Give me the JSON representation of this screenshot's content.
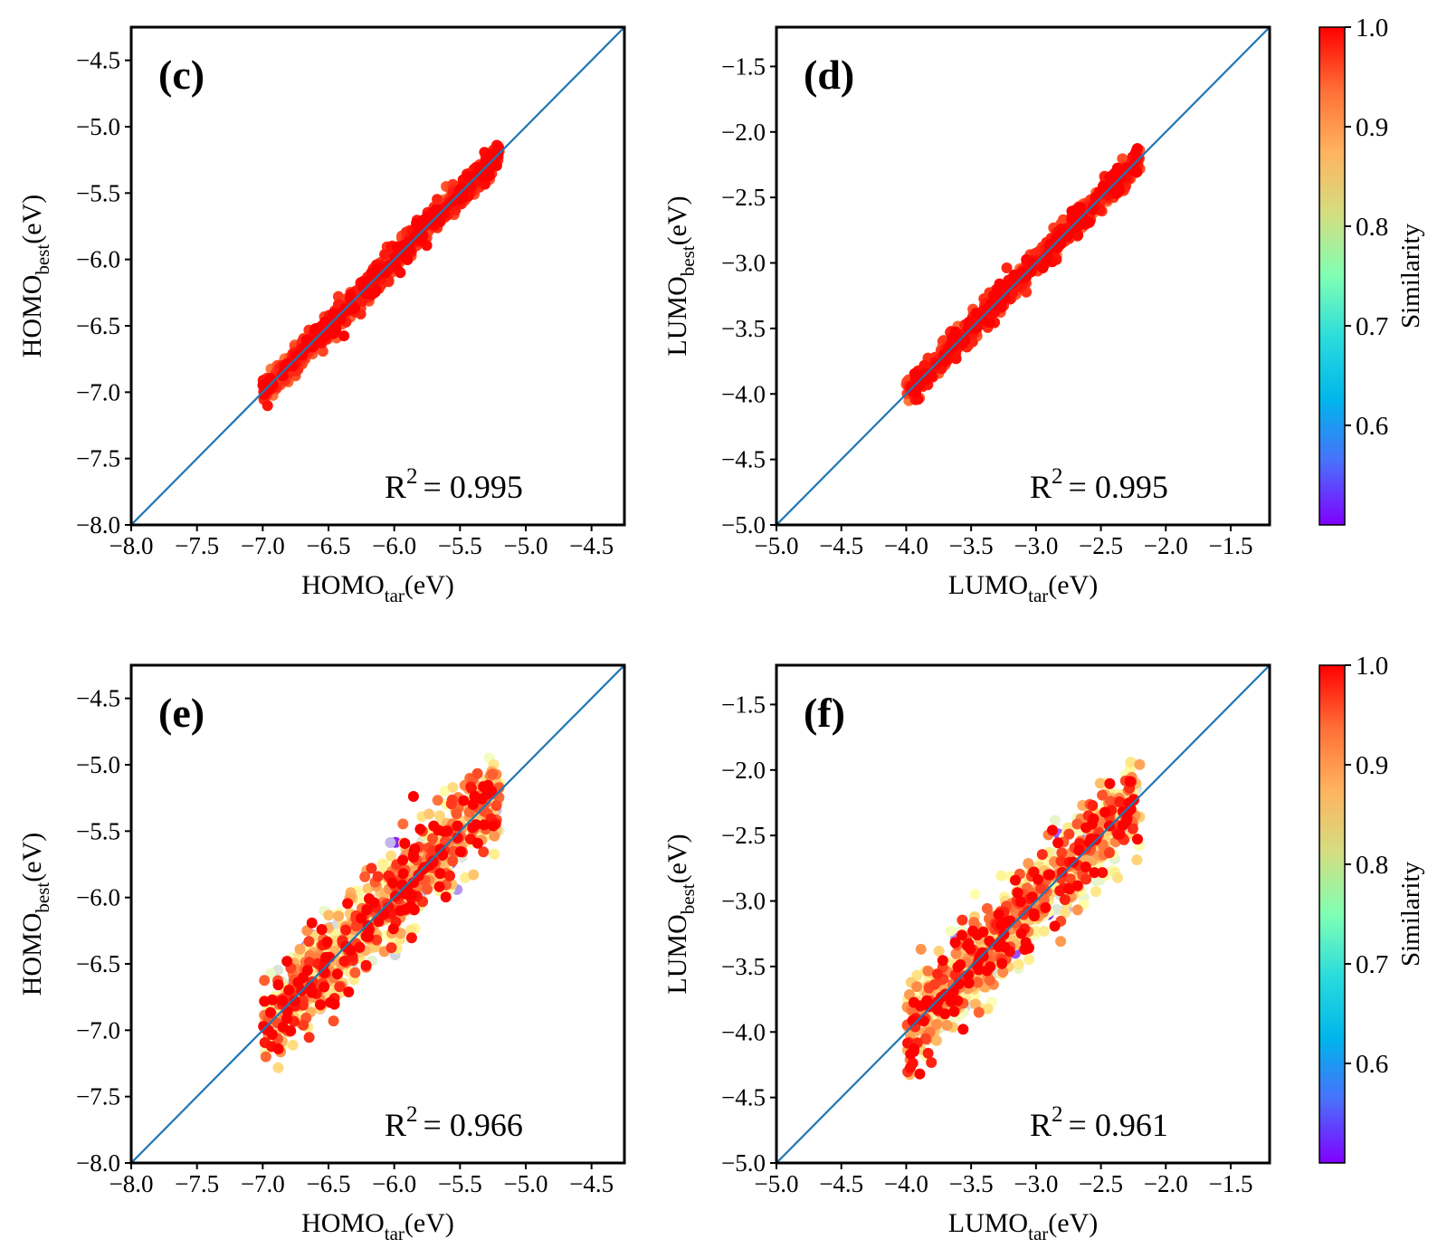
{
  "chart_data": [
    {
      "type": "scatter",
      "panel_label": "(c)",
      "xlabel_main": "HOMO",
      "xlabel_sub": "tar",
      "xlabel_unit": "(eV)",
      "ylabel_main": "HOMO",
      "ylabel_sub": "best",
      "ylabel_unit": "(eV)",
      "xlim": [
        -8.0,
        -4.25
      ],
      "ylim": [
        -8.0,
        -4.25
      ],
      "xticks": [
        "−8.0",
        "−7.5",
        "−7.0",
        "−6.5",
        "−6.0",
        "−5.5",
        "−5.0",
        "−4.5"
      ],
      "yticks": [
        "−8.0",
        "−7.5",
        "−7.0",
        "−6.5",
        "−6.0",
        "−5.5",
        "−5.0",
        "−4.5"
      ],
      "tick_values": [
        -8.0,
        -7.5,
        -7.0,
        -6.5,
        -6.0,
        -5.5,
        -5.0,
        -4.5
      ],
      "r2_main": "R",
      "r2_sup": "2",
      "r2_value": "= 0.995",
      "data_range": [
        -7.0,
        -5.2
      ],
      "diagonal": true,
      "spread": 0.05,
      "similarity_mean": 0.97
    },
    {
      "type": "scatter",
      "panel_label": "(d)",
      "xlabel_main": "LUMO",
      "xlabel_sub": "tar",
      "xlabel_unit": "(eV)",
      "ylabel_main": "LUMO",
      "ylabel_sub": "best",
      "ylabel_unit": "(eV)",
      "xlim": [
        -5.0,
        -1.2
      ],
      "ylim": [
        -5.0,
        -1.2
      ],
      "xticks": [
        "−5.0",
        "−4.5",
        "−4.0",
        "−3.5",
        "−3.0",
        "−2.5",
        "−2.0",
        "−1.5"
      ],
      "yticks": [
        "−5.0",
        "−4.5",
        "−4.0",
        "−3.5",
        "−3.0",
        "−2.5",
        "−2.0",
        "−1.5"
      ],
      "tick_values": [
        -5.0,
        -4.5,
        -4.0,
        -3.5,
        -3.0,
        -2.5,
        -2.0,
        -1.5
      ],
      "r2_main": "R",
      "r2_sup": "2",
      "r2_value": "= 0.995",
      "data_range": [
        -4.0,
        -2.2
      ],
      "diagonal": true,
      "spread": 0.05,
      "similarity_mean": 0.97
    },
    {
      "type": "scatter",
      "panel_label": "(e)",
      "xlabel_main": "HOMO",
      "xlabel_sub": "tar",
      "xlabel_unit": "(eV)",
      "ylabel_main": "HOMO",
      "ylabel_sub": "best",
      "ylabel_unit": "(eV)",
      "xlim": [
        -8.0,
        -4.25
      ],
      "ylim": [
        -8.0,
        -4.25
      ],
      "xticks": [
        "−8.0",
        "−7.5",
        "−7.0",
        "−6.5",
        "−6.0",
        "−5.5",
        "−5.0",
        "−4.5"
      ],
      "yticks": [
        "−8.0",
        "−7.5",
        "−7.0",
        "−6.5",
        "−6.0",
        "−5.5",
        "−5.0",
        "−4.5"
      ],
      "tick_values": [
        -8.0,
        -7.5,
        -7.0,
        -6.5,
        -6.0,
        -5.5,
        -5.0,
        -4.5
      ],
      "r2_main": "R",
      "r2_sup": "2",
      "r2_value": "= 0.966",
      "data_range": [
        -7.0,
        -5.2
      ],
      "diagonal": true,
      "spread": 0.17,
      "similarity_mean": 0.86
    },
    {
      "type": "scatter",
      "panel_label": "(f)",
      "xlabel_main": "LUMO",
      "xlabel_sub": "tar",
      "xlabel_unit": "(eV)",
      "ylabel_main": "LUMO",
      "ylabel_sub": "best",
      "ylabel_unit": "(eV)",
      "xlim": [
        -5.0,
        -1.2
      ],
      "ylim": [
        -5.0,
        -1.2
      ],
      "xticks": [
        "−5.0",
        "−4.5",
        "−4.0",
        "−3.5",
        "−3.0",
        "−2.5",
        "−2.0",
        "−1.5"
      ],
      "yticks": [
        "−5.0",
        "−4.5",
        "−4.0",
        "−3.5",
        "−3.0",
        "−2.5",
        "−2.0",
        "−1.5"
      ],
      "tick_values": [
        -5.0,
        -4.5,
        -4.0,
        -3.5,
        -3.0,
        -2.5,
        -2.0,
        -1.5
      ],
      "r2_main": "R",
      "r2_sup": "2",
      "r2_value": "= 0.961",
      "data_range": [
        -4.0,
        -2.2
      ],
      "diagonal": true,
      "spread": 0.17,
      "similarity_mean": 0.86
    }
  ],
  "colorbars": [
    {
      "label": "Similarity",
      "range": [
        0.5,
        1.0
      ],
      "ticks": [
        "0.6",
        "0.7",
        "0.8",
        "0.9",
        "1.0"
      ],
      "tick_values": [
        0.6,
        0.7,
        0.8,
        0.9,
        1.0
      ],
      "colormap": "rainbow"
    },
    {
      "label": "Similarity",
      "range": [
        0.5,
        1.0
      ],
      "ticks": [
        "0.6",
        "0.7",
        "0.8",
        "0.9",
        "1.0"
      ],
      "tick_values": [
        0.6,
        0.7,
        0.8,
        0.9,
        1.0
      ],
      "colormap": "rainbow"
    }
  ],
  "colors": {
    "diagonal_line": "#1f77b4",
    "frame": "#000000"
  }
}
